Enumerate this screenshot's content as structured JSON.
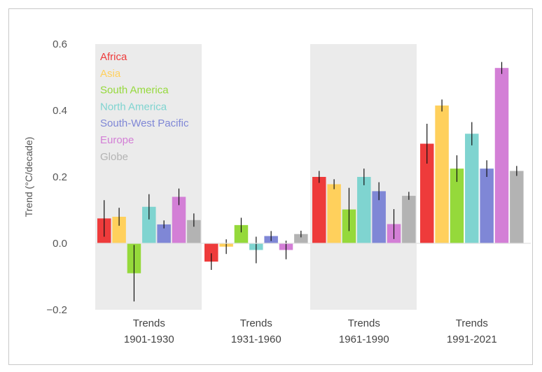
{
  "chart_data": {
    "type": "bar",
    "title": "",
    "xlabel": "",
    "ylabel": "Trend (°C/decade)",
    "ylim": [
      -0.2,
      0.6
    ],
    "yticks": [
      {
        "value": -0.2,
        "label": "−0.2"
      },
      {
        "value": 0.0,
        "label": "0.0"
      },
      {
        "value": 0.2,
        "label": "0.2"
      },
      {
        "value": 0.4,
        "label": "0.4"
      },
      {
        "value": 0.6,
        "label": "0.6"
      }
    ],
    "grid": false,
    "legend_position": "top-left",
    "categories": [
      {
        "line1": "Trends",
        "line2": "1901-1930",
        "shaded": true
      },
      {
        "line1": "Trends",
        "line2": "1931-1960",
        "shaded": false
      },
      {
        "line1": "Trends",
        "line2": "1961-1990",
        "shaded": true
      },
      {
        "line1": "Trends",
        "line2": "1991-2021",
        "shaded": false
      }
    ],
    "series": [
      {
        "name": "Africa",
        "color": "#ee3b3b",
        "values": [
          0.075,
          -0.055,
          0.2,
          0.3
        ],
        "err": [
          0.055,
          0.025,
          0.018,
          0.06
        ]
      },
      {
        "name": "Asia",
        "color": "#ffd05c",
        "values": [
          0.08,
          -0.01,
          0.178,
          0.415
        ],
        "err": [
          0.027,
          0.022,
          0.015,
          0.018
        ]
      },
      {
        "name": "South America",
        "color": "#95d93b",
        "values": [
          -0.09,
          0.055,
          0.102,
          0.225
        ],
        "err": [
          0.085,
          0.022,
          0.065,
          0.04
        ]
      },
      {
        "name": "North America",
        "color": "#7fd4d0",
        "values": [
          0.11,
          -0.02,
          0.2,
          0.33
        ],
        "err": [
          0.038,
          0.04,
          0.025,
          0.035
        ]
      },
      {
        "name": "South-West Pacific",
        "color": "#7f87d6",
        "values": [
          0.057,
          0.022,
          0.157,
          0.225
        ],
        "err": [
          0.012,
          0.015,
          0.027,
          0.025
        ]
      },
      {
        "name": "Europe",
        "color": "#d37fd6",
        "values": [
          0.14,
          -0.02,
          0.058,
          0.528
        ],
        "err": [
          0.025,
          0.028,
          0.045,
          0.018
        ]
      },
      {
        "name": "Globe",
        "color": "#b3b3b3",
        "values": [
          0.07,
          0.028,
          0.143,
          0.218
        ],
        "err": [
          0.02,
          0.01,
          0.012,
          0.015
        ]
      }
    ]
  }
}
